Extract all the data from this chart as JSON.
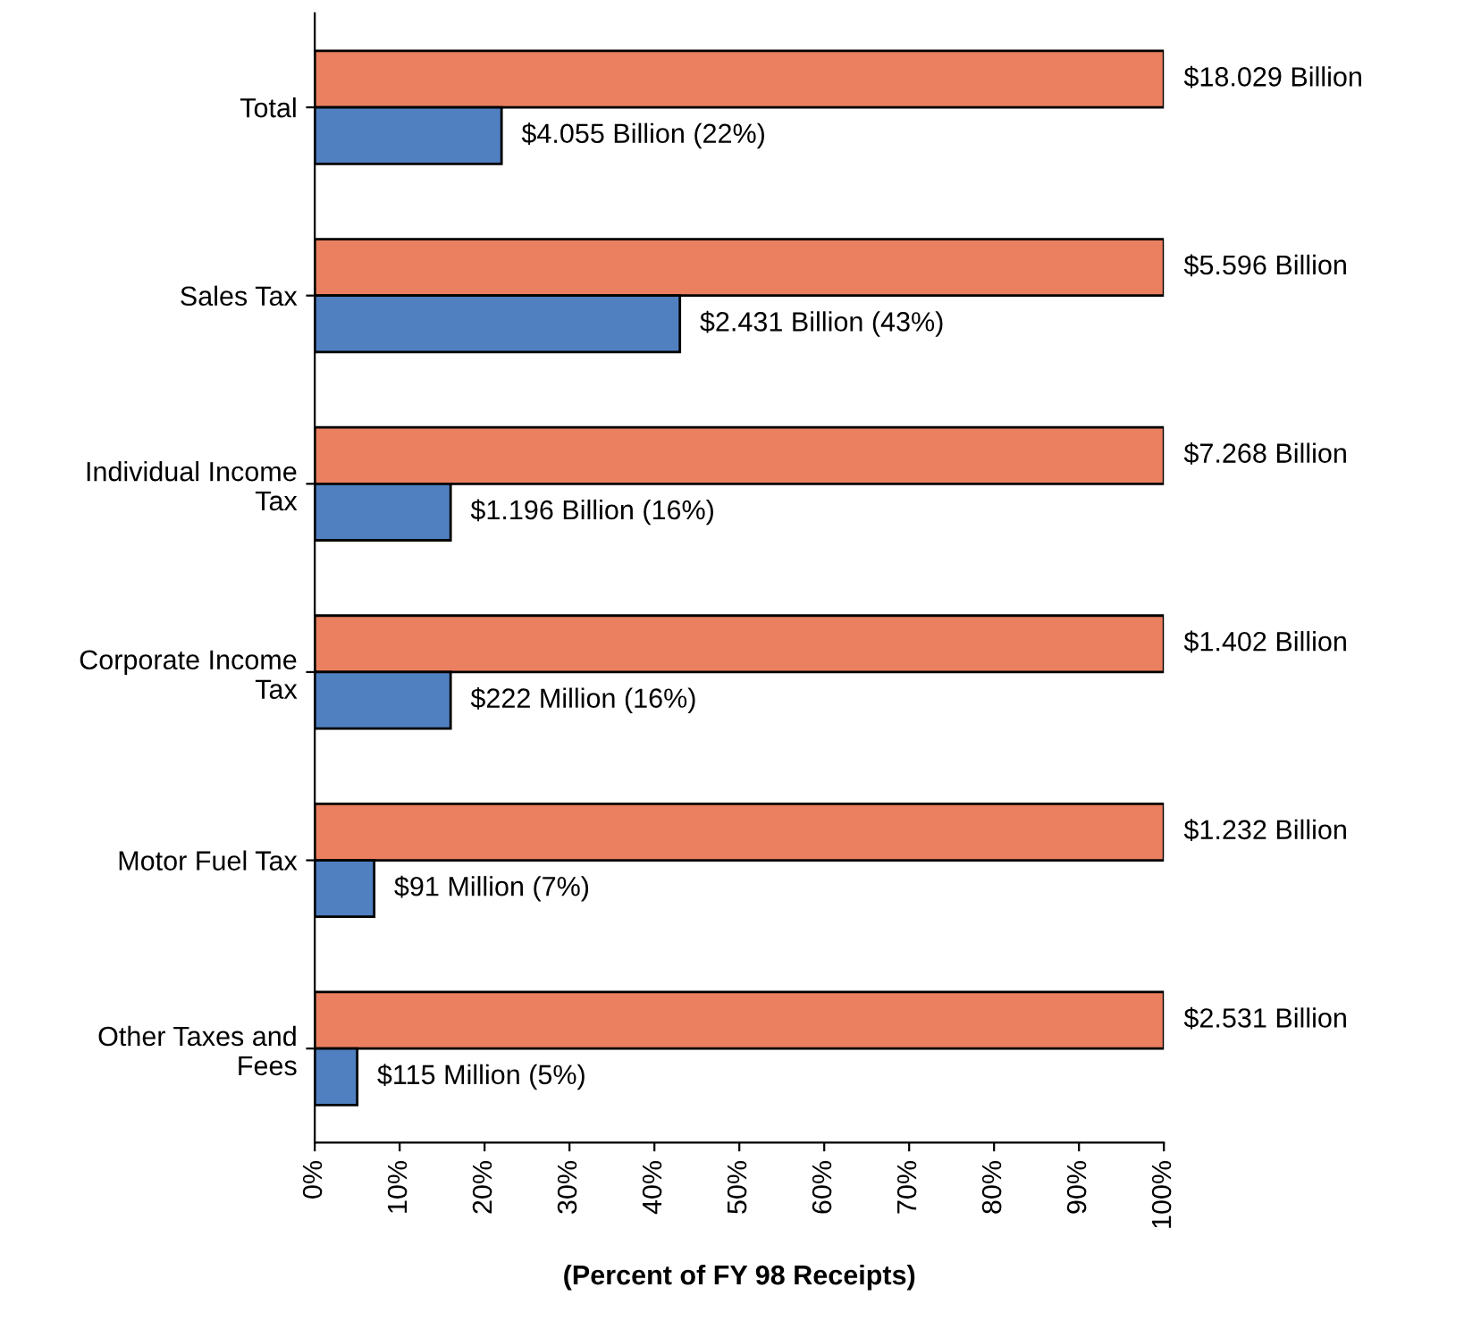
{
  "chart_data": {
    "type": "bar",
    "orientation": "horizontal",
    "categories": [
      "Total",
      "Sales Tax",
      "Individual Income\nTax",
      "Corporate Income\nTax",
      "Motor Fuel Tax",
      "Other Taxes and\nFees"
    ],
    "series": [
      {
        "color": "#ea8060",
        "values": [
          100,
          100,
          100,
          100,
          100,
          100
        ]
      },
      {
        "color": "#5080c0",
        "values": [
          22,
          43,
          16,
          16,
          7,
          5
        ],
        "value_labels": [
          "$4.055 Billion (22%)",
          "$2.431 Billion (43%)",
          "$1.196 Billion (16%)",
          "$222 Million (16%)",
          "$91 Million (7%)",
          "$115 Million (5%)"
        ]
      }
    ],
    "annotations": [
      "$18.029 Billion",
      "$5.596 Billion",
      "$7.268 Billion",
      "$1.402 Billion",
      "$1.232 Billion",
      "$2.531 Billion"
    ],
    "xlim": [
      0,
      100
    ],
    "xticks": [
      {
        "value": 0,
        "label": "0%"
      },
      {
        "value": 10,
        "label": "10%"
      },
      {
        "value": 20,
        "label": "20%"
      },
      {
        "value": 30,
        "label": "30%"
      },
      {
        "value": 40,
        "label": "40%"
      },
      {
        "value": 50,
        "label": "50%"
      },
      {
        "value": 60,
        "label": "60%"
      },
      {
        "value": 70,
        "label": "70%"
      },
      {
        "value": 80,
        "label": "80%"
      },
      {
        "value": 90,
        "label": "90%"
      },
      {
        "value": 100,
        "label": "100%"
      }
    ],
    "xlabel": "(Percent of FY 98 Receipts)",
    "grid": false,
    "legend": false
  }
}
